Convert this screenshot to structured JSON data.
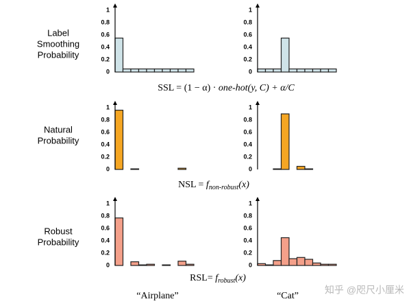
{
  "rows": [
    {
      "label_lines": [
        "Label",
        "Smoothing",
        "Probability"
      ],
      "formula": [
        "SSL = (1 − α) · ",
        "one-hot(y, C) + α/C"
      ]
    },
    {
      "label_lines": [
        "Natural",
        "Probability"
      ],
      "formula": [
        "NSL = ",
        "f",
        "non-robust",
        "(x)"
      ]
    },
    {
      "label_lines": [
        "Robust",
        "Probability"
      ],
      "formula": [
        "RSL= ",
        "f",
        "robust",
        "(x)"
      ]
    }
  ],
  "columns": [
    "“Airplane”",
    "“Cat”"
  ],
  "watermark": "知乎 @咫尺小厘米",
  "chart_data": [
    {
      "type": "bar",
      "categories": [
        null,
        null,
        null,
        null,
        null,
        null,
        null,
        null,
        null,
        null
      ],
      "values": [
        0.55,
        0.05,
        0.05,
        0.05,
        0.05,
        0.05,
        0.05,
        0.05,
        0.05,
        0.05
      ],
      "color": "#cfe3e8",
      "ylim": [
        0,
        1
      ],
      "yticks": [
        0,
        0.2,
        0.4,
        0.6,
        0.8,
        1
      ]
    },
    {
      "type": "bar",
      "categories": [
        null,
        null,
        null,
        null,
        null,
        null,
        null,
        null,
        null,
        null
      ],
      "values": [
        0.05,
        0.05,
        0.05,
        0.55,
        0.05,
        0.05,
        0.05,
        0.05,
        0.05,
        0.05
      ],
      "color": "#cfe3e8",
      "ylim": [
        0,
        1
      ],
      "yticks": [
        0,
        0.2,
        0.4,
        0.6,
        0.8,
        1
      ]
    },
    {
      "type": "bar",
      "categories": [
        null,
        null,
        null,
        null,
        null,
        null,
        null,
        null,
        null,
        null
      ],
      "values": [
        0.96,
        0,
        0.01,
        0,
        0,
        0,
        0,
        0,
        0.02,
        0
      ],
      "color": "#f5a623",
      "ylim": [
        0,
        1
      ],
      "yticks": [
        0,
        0.2,
        0.4,
        0.6,
        0.8,
        1
      ]
    },
    {
      "type": "bar",
      "categories": [
        null,
        null,
        null,
        null,
        null,
        null,
        null,
        null,
        null,
        null
      ],
      "values": [
        0,
        0,
        0.01,
        0.9,
        0,
        0.05,
        0.01,
        0,
        0,
        0
      ],
      "color": "#f5a623",
      "ylim": [
        0,
        1
      ],
      "yticks": [
        0,
        0.2,
        0.4,
        0.6,
        0.8,
        1
      ]
    },
    {
      "type": "bar",
      "categories": [
        null,
        null,
        null,
        null,
        null,
        null,
        null,
        null,
        null,
        null
      ],
      "values": [
        0.77,
        0,
        0.06,
        0.01,
        0.02,
        0,
        0.01,
        0,
        0.07,
        0.02
      ],
      "color": "#f4a08a",
      "ylim": [
        0,
        1
      ],
      "yticks": [
        0,
        0.2,
        0.4,
        0.6,
        0.8,
        1
      ]
    },
    {
      "type": "bar",
      "categories": [
        null,
        null,
        null,
        null,
        null,
        null,
        null,
        null,
        null,
        null
      ],
      "values": [
        0.03,
        0.01,
        0.08,
        0.45,
        0.11,
        0.13,
        0.1,
        0.04,
        0.02,
        0.02
      ],
      "color": "#f4a08a",
      "ylim": [
        0,
        1
      ],
      "yticks": [
        0,
        0.2,
        0.4,
        0.6,
        0.8,
        1
      ]
    }
  ]
}
